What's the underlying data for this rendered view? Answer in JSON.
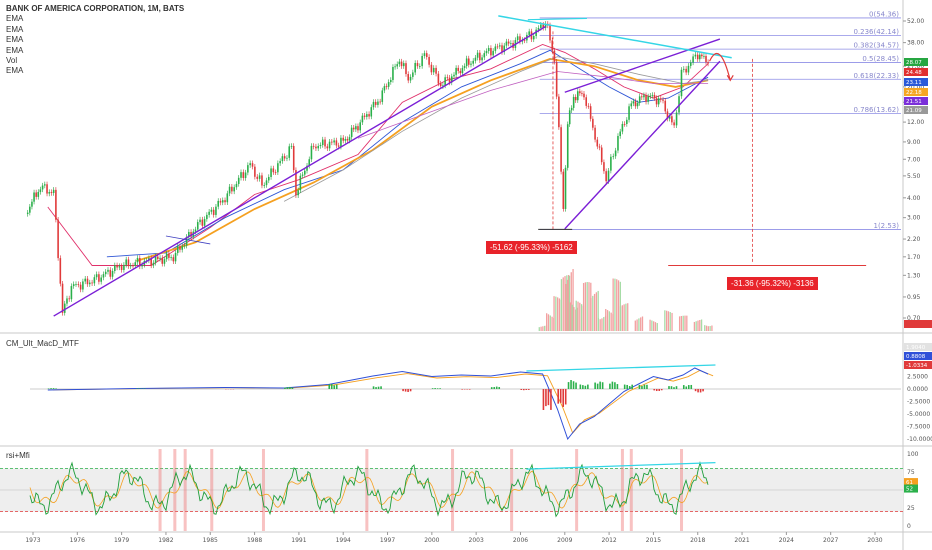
{
  "legend": {
    "title": "BANK OF AMERICA CORPORATION, 1M, BATS",
    "items": [
      "EMA",
      "EMA",
      "EMA",
      "EMA",
      "Vol",
      "EMA"
    ]
  },
  "panes": {
    "macd_label": "CM_Ult_MacD_MTF",
    "rsi_label": "rsi+Mfi"
  },
  "annotations": {
    "drop1": "-51.62 (-95.33%) -5162",
    "drop2": "-31.36 (-95.32%) -3136"
  },
  "chart_data": [
    {
      "type": "line",
      "title": "BANK OF AMERICA CORPORATION, 1M, BATS",
      "y_scale": "log",
      "y_ticks": [
        "52.00",
        "38.00",
        "27.00",
        "20.00",
        "16.00",
        "12.00",
        "9.00",
        "7.00",
        "5.50",
        "4.00",
        "3.00",
        "2.20",
        "1.70",
        "1.30",
        "0.95",
        "0.70"
      ],
      "x_ticks": [
        "1973",
        "1976",
        "1979",
        "1982",
        "1985",
        "1988",
        "1991",
        "1994",
        "1997",
        "2000",
        "2003",
        "2006",
        "2009",
        "2012",
        "2015",
        "2018",
        "2021",
        "2024",
        "2027",
        "2030"
      ],
      "fib_levels": [
        {
          "label": "0(54.36)",
          "value": 54.36
        },
        {
          "label": "0.236(42.14)",
          "value": 42.14
        },
        {
          "label": "0.382(34.57)",
          "value": 34.57
        },
        {
          "label": "0.5(28.45)",
          "value": 28.45
        },
        {
          "label": "0.618(22.33)",
          "value": 22.33
        },
        {
          "label": "0.786(13.62)",
          "value": 13.62
        },
        {
          "label": "1(2.53)",
          "value": 2.53
        }
      ],
      "price_badges": [
        {
          "text": "28.07",
          "color": "#26a641"
        },
        {
          "text": "24.48",
          "color": "#e03030"
        },
        {
          "text": "23.11",
          "color": "#2a5ad8"
        },
        {
          "text": "22.18",
          "color": "#f5a623"
        },
        {
          "text": "21.51",
          "color": "#7b2fd9"
        },
        {
          "text": "21.09",
          "color": "#999999"
        }
      ],
      "price_series": {
        "name": "",
        "x": [
          1972.5,
          1973.5,
          1974.4,
          1975.0,
          1975.6,
          1977,
          1979,
          1981,
          1982.5,
          1984,
          1986,
          1987.7,
          1988.5,
          1990.5,
          1990.8,
          1992,
          1994,
          1995,
          1996.5,
          1997.8,
          1998.4,
          1999.5,
          2000.6,
          2001.5,
          2002.5,
          2004,
          2005.5,
          2006.9,
          2007.7,
          2008.3,
          2008.9,
          2009.2,
          2009.6,
          2010.3,
          2011.8,
          2012.6,
          2013.5,
          2014.5,
          2015.5,
          2016.4,
          2016.9,
          2018.0,
          2018.7
        ],
        "y": [
          3.2,
          4.7,
          4.3,
          0.75,
          1.1,
          1.2,
          1.5,
          1.6,
          1.7,
          2.6,
          4.0,
          6.5,
          4.8,
          8.3,
          4.3,
          8.5,
          9.0,
          11.5,
          17.0,
          30.0,
          22.5,
          32.0,
          20.5,
          24.0,
          28.5,
          34.0,
          38.0,
          43.0,
          51.6,
          30.0,
          3.5,
          11.5,
          17.5,
          18.0,
          5.3,
          9.5,
          15.5,
          17.5,
          16.5,
          11.0,
          24.0,
          32.5,
          28.07
        ]
      },
      "ema_series": [
        {
          "x": [
            1974,
            1977,
            1981,
            1985,
            1988,
            1991,
            1995,
            1998,
            2001,
            2004,
            2007.5,
            2009,
            2011,
            2013,
            2015,
            2017,
            2018.7
          ],
          "y": [
            3.5,
            1.5,
            1.5,
            2.6,
            4.2,
            5.2,
            7.5,
            16,
            22,
            26,
            37,
            33,
            26,
            20,
            17,
            20,
            28
          ]
        },
        {
          "x": [
            1978,
            1982,
            1986,
            1990,
            1994,
            1998,
            2002,
            2006,
            2008,
            2010,
            2012,
            2014,
            2016,
            2018.7
          ],
          "y": [
            1.7,
            1.8,
            3.0,
            4.5,
            6.0,
            12,
            20,
            28,
            34,
            26,
            20,
            16,
            17,
            23
          ]
        },
        {
          "x": [
            1980,
            1984,
            1988,
            1992,
            1996,
            2000,
            2004,
            2008,
            2011,
            2014,
            2016.5,
            2018.7
          ],
          "y": [
            1.6,
            2.1,
            3.4,
            5.0,
            8.0,
            15,
            22,
            30,
            27,
            22,
            20,
            22
          ]
        },
        {
          "x": [
            1990,
            1994,
            1998,
            2002,
            2006,
            2008.5,
            2011,
            2014,
            2017,
            2018.7
          ],
          "y": [
            3.8,
            6.0,
            10.5,
            17,
            25,
            31,
            28,
            24,
            21,
            22
          ]
        },
        {
          "x": [
            1995,
            2000,
            2004,
            2008.5,
            2012,
            2015,
            2018.7
          ],
          "y": [
            9.5,
            14,
            19,
            25,
            23,
            21,
            21
          ]
        }
      ],
      "volume": {
        "x": [
          2007.5,
          2008,
          2008.5,
          2009,
          2009.3,
          2009.6,
          2010,
          2010.5,
          2011,
          2011.5,
          2012,
          2012.5,
          2013,
          2014,
          2015,
          2016,
          2017,
          2018,
          2018.7
        ],
        "values": [
          0.1,
          0.3,
          0.5,
          0.8,
          1.0,
          0.55,
          0.45,
          0.7,
          0.6,
          0.3,
          0.35,
          0.75,
          0.4,
          0.25,
          0.2,
          0.3,
          0.22,
          0.18,
          0.12
        ]
      }
    },
    {
      "type": "line",
      "title": "CM_Ult_MacD_MTF",
      "y_ticks": [
        "5.0000",
        "2.5000",
        "0.0000",
        "-2.5000",
        "-5.0000",
        "-7.5000",
        "-10.0000"
      ],
      "badges": [
        "1.9040",
        "0.8808",
        "-1.0334"
      ],
      "series": [
        {
          "x": [
            1974,
            1980,
            1986,
            1990,
            1993,
            1996,
            1998,
            2000,
            2002,
            2004,
            2006,
            2007.5,
            2008.5,
            2009.2,
            2010,
            2011,
            2012,
            2013,
            2014,
            2015,
            2016,
            2017,
            2017.8,
            2018.7
          ],
          "y": [
            -0.2,
            0.1,
            0.3,
            0.2,
            0.9,
            2.6,
            3.5,
            2.5,
            2.8,
            2.6,
            3.4,
            3.0,
            -4.0,
            -10.0,
            -7.0,
            -5.5,
            -3.0,
            -0.5,
            1.0,
            2.5,
            1.8,
            2.8,
            4.2,
            3.0
          ]
        }
      ]
    },
    {
      "type": "line",
      "title": "rsi+Mfi",
      "y_ticks": [
        "100",
        "75",
        "50",
        "25",
        "0"
      ],
      "badges": [
        "61",
        "52"
      ],
      "levels": [
        80,
        20
      ]
    }
  ]
}
